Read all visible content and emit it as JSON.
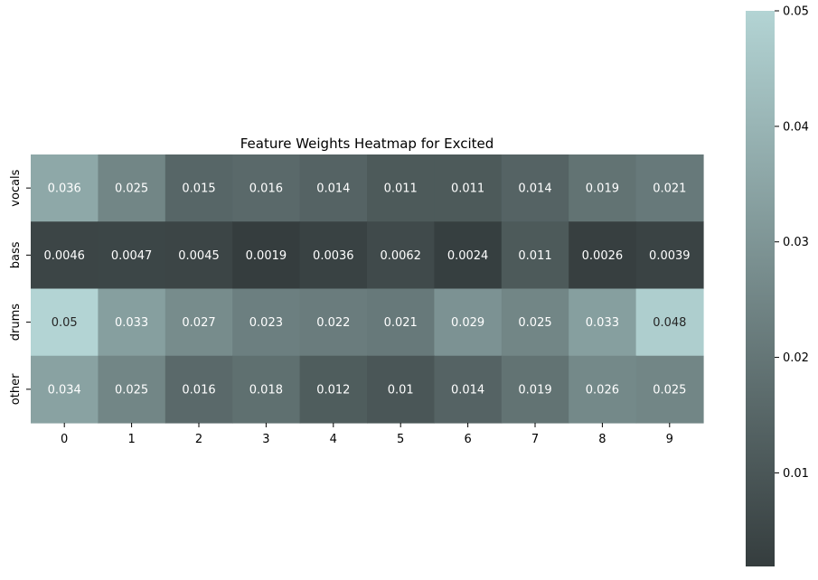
{
  "chart_data": {
    "type": "heatmap",
    "title": "Feature Weights Heatmap for Excited",
    "xlabel": "",
    "ylabel": "",
    "x_categories": [
      "0",
      "1",
      "2",
      "3",
      "4",
      "5",
      "6",
      "7",
      "8",
      "9"
    ],
    "y_categories": [
      "vocals",
      "bass",
      "drums",
      "other"
    ],
    "values": [
      [
        0.036,
        0.025,
        0.015,
        0.016,
        0.014,
        0.011,
        0.011,
        0.014,
        0.019,
        0.021
      ],
      [
        0.0046,
        0.0047,
        0.0045,
        0.0019,
        0.0036,
        0.0062,
        0.0024,
        0.011,
        0.0026,
        0.0039
      ],
      [
        0.05,
        0.033,
        0.027,
        0.023,
        0.022,
        0.021,
        0.029,
        0.025,
        0.033,
        0.048
      ],
      [
        0.034,
        0.025,
        0.016,
        0.018,
        0.012,
        0.01,
        0.014,
        0.019,
        0.026,
        0.025
      ]
    ],
    "annotations": [
      [
        "0.036",
        "0.025",
        "0.015",
        "0.016",
        "0.014",
        "0.011",
        "0.011",
        "0.014",
        "0.019",
        "0.021"
      ],
      [
        "0.0046",
        "0.0047",
        "0.0045",
        "0.0019",
        "0.0036",
        "0.0062",
        "0.0024",
        "0.011",
        "0.0026",
        "0.0039"
      ],
      [
        "0.05",
        "0.033",
        "0.027",
        "0.023",
        "0.022",
        "0.021",
        "0.029",
        "0.025",
        "0.033",
        "0.048"
      ],
      [
        "0.034",
        "0.025",
        "0.016",
        "0.018",
        "0.012",
        "0.01",
        "0.014",
        "0.019",
        "0.026",
        "0.025"
      ]
    ],
    "colorbar": {
      "vmin": 0.0019,
      "vmax": 0.05,
      "ticks": [
        0.01,
        0.02,
        0.03,
        0.04,
        0.05
      ],
      "tick_labels": [
        "0.01",
        "0.02",
        "0.03",
        "0.04",
        "0.05"
      ],
      "color_low": "#353d3e",
      "color_high": "#b3d4d4"
    },
    "grid": false,
    "legend": "colorbar-right"
  }
}
